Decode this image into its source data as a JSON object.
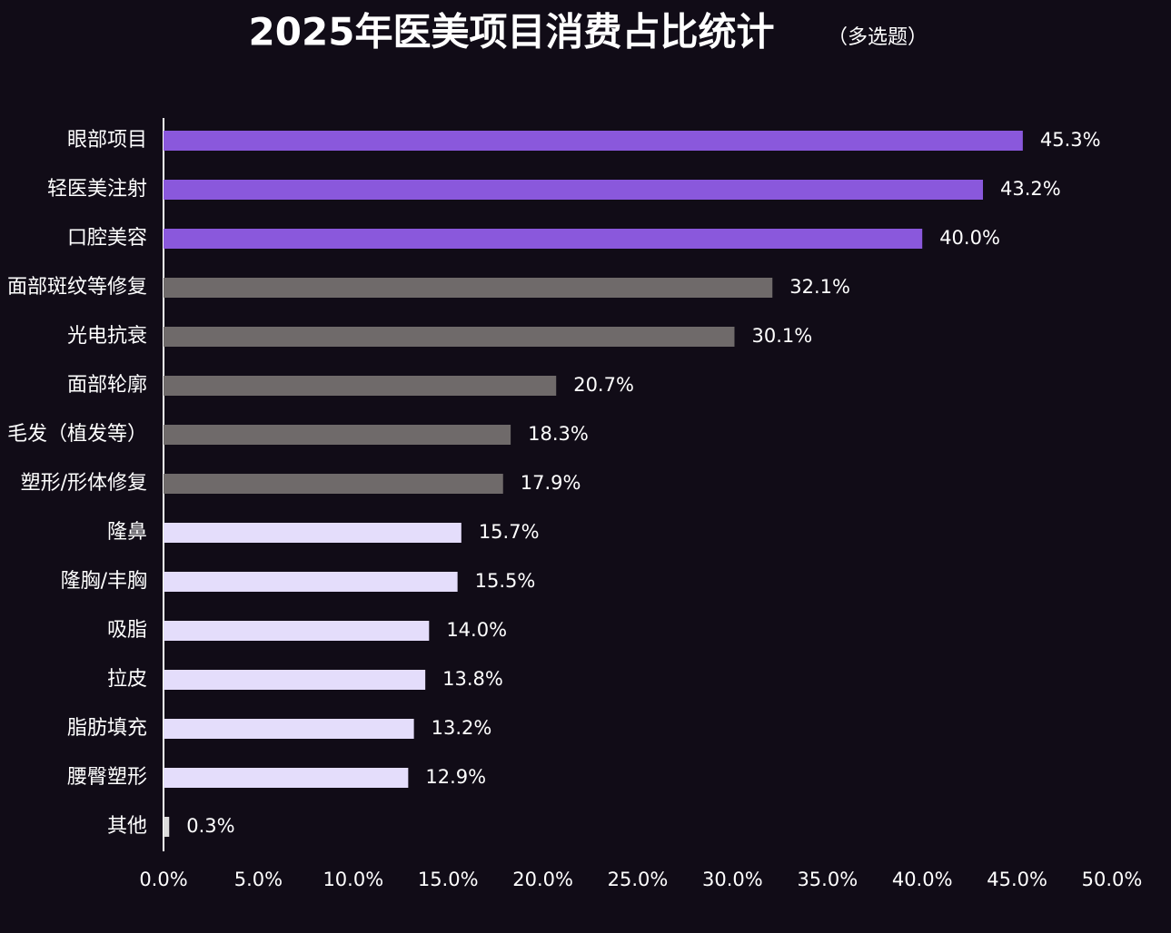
{
  "chart_data": {
    "type": "bar",
    "orientation": "horizontal",
    "title": "2025年医美项目消费占比统计",
    "subtitle": "（多选题）",
    "categories": [
      "眼部项目",
      "轻医美注射",
      "口腔美容",
      "面部斑纹等修复",
      "光电抗衰",
      "面部轮廓",
      "毛发（植发等）",
      "塑形/形体修复",
      "隆鼻",
      "隆胸/丰胸",
      "吸脂",
      "拉皮",
      "脂肪填充",
      "腰臀塑形",
      "其他"
    ],
    "values": [
      45.3,
      43.2,
      40.0,
      32.1,
      30.1,
      20.7,
      18.3,
      17.9,
      15.7,
      15.5,
      14.0,
      13.8,
      13.2,
      12.9,
      0.3
    ],
    "value_labels": [
      "45.3%",
      "43.2%",
      "40.0%",
      "32.1%",
      "30.1%",
      "20.7%",
      "18.3%",
      "17.9%",
      "15.7%",
      "15.5%",
      "14.0%",
      "13.8%",
      "13.2%",
      "12.9%",
      "0.3%"
    ],
    "colors": [
      "#8a58dc",
      "#8a58dc",
      "#8a58dc",
      "#6f6a6a",
      "#6f6a6a",
      "#6f6a6a",
      "#6f6a6a",
      "#6f6a6a",
      "#e4ddfb",
      "#e4ddfb",
      "#e4ddfb",
      "#e4ddfb",
      "#e4ddfb",
      "#e4ddfb",
      "#dcdcdc"
    ],
    "xlim": [
      0,
      50
    ],
    "xticks": [
      {
        "value": 0,
        "label": "0.0%"
      },
      {
        "value": 5,
        "label": "5.0%"
      },
      {
        "value": 10,
        "label": "10.0%"
      },
      {
        "value": 15,
        "label": "15.0%"
      },
      {
        "value": 20,
        "label": "20.0%"
      },
      {
        "value": 25,
        "label": "25.0%"
      },
      {
        "value": 30,
        "label": "30.0%"
      },
      {
        "value": 35,
        "label": "35.0%"
      },
      {
        "value": 40,
        "label": "40.0%"
      },
      {
        "value": 45,
        "label": "45.0%"
      },
      {
        "value": 50,
        "label": "50.0%"
      }
    ],
    "grid": false
  }
}
